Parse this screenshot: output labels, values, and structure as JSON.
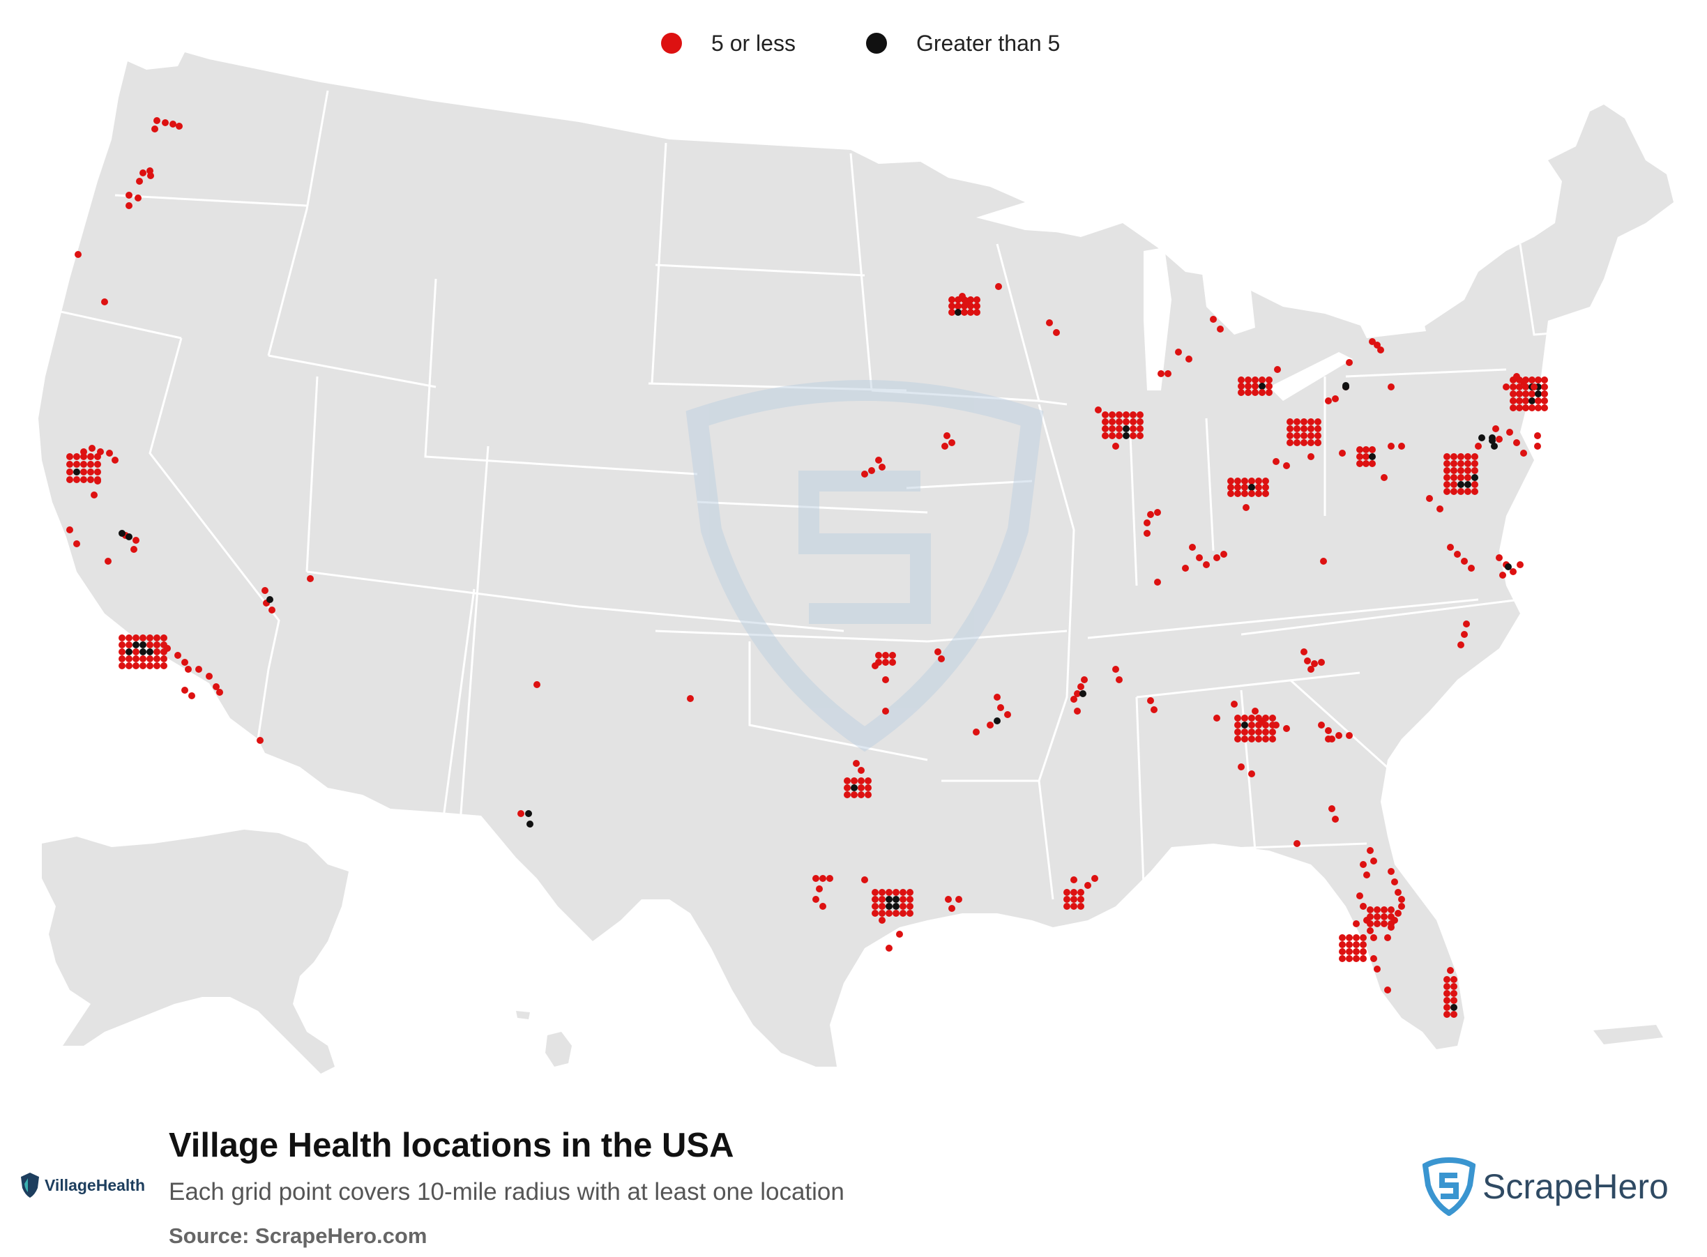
{
  "legend": [
    {
      "label": "5 or less",
      "color": "#dd1111"
    },
    {
      "label": "Greater than 5",
      "color": "#111111"
    }
  ],
  "title": "Village Health locations in the USA",
  "subtitle": "Each grid point covers 10-mile radius with at least one location",
  "source": "Source: ScrapeHero.com",
  "brand_logo": {
    "name": "village-health-logo",
    "text": "VillageHealth"
  },
  "publisher_logo": {
    "name": "scrapehero-logo",
    "text": "ScrapeHero"
  },
  "colors": {
    "land": "#e3e3e3",
    "border": "#ffffff",
    "low": "#dd1111",
    "high": "#111111",
    "watermark": "#b9cde0"
  }
}
